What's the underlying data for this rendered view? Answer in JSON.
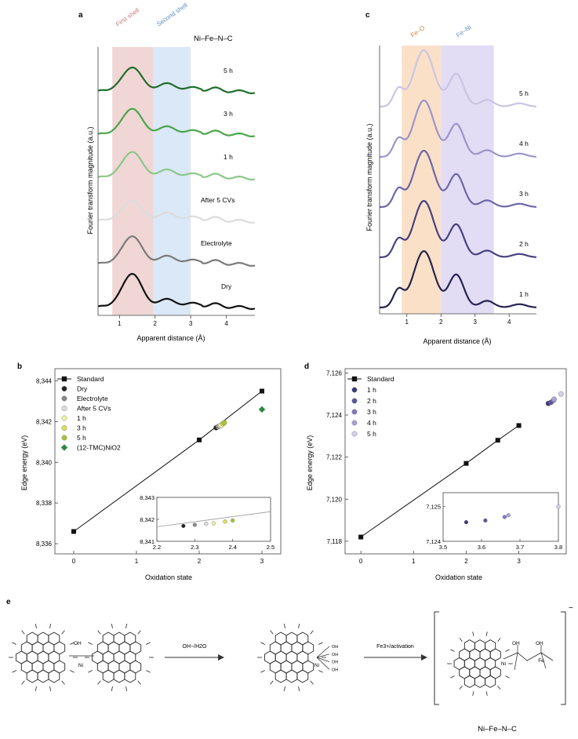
{
  "panels": {
    "a": {
      "label": "a",
      "title": "Ni–Fe–N–C",
      "bands": [
        "First shell",
        "Second shell"
      ],
      "ylabel": "Fourier transform magnitude (a.u.)",
      "xlabel": "Apparent distance (Å)",
      "xticks": [
        "1",
        "2",
        "3",
        "4"
      ],
      "curve_labels": [
        "5 h",
        "3 h",
        "1 h",
        "After 5 CVs",
        "Electrolyte",
        "Dry"
      ]
    },
    "c": {
      "label": "c",
      "bands": [
        "Fe–O",
        "Fe–Ni"
      ],
      "ylabel": "Fourier transform magnitude (a.u.)",
      "xlabel": "Apparent distance (Å)",
      "xticks": [
        "1",
        "2",
        "3",
        "4"
      ],
      "curve_labels": [
        "5 h",
        "4 h",
        "3 h",
        "2 h",
        "1 h"
      ]
    },
    "b": {
      "label": "b",
      "ylabel": "Edge energy (eV)",
      "xlabel": "Oxidation state",
      "xticks": [
        "0",
        "1",
        "2",
        "3"
      ],
      "yticks": [
        "8,336",
        "8,338",
        "8,340",
        "8,342",
        "8,344"
      ],
      "legend": [
        "Standard",
        "Dry",
        "Electrolyte",
        "After 5 CVs",
        "1 h",
        "3 h",
        "5 h",
        "(12-TMC)NiO2"
      ],
      "inset_xticks": [
        "2.2",
        "2.3",
        "2.4",
        "2.5"
      ],
      "inset_yticks": [
        "8,341",
        "8,342",
        "8,343"
      ]
    },
    "d": {
      "label": "d",
      "ylabel": "Edge energy (eV)",
      "xlabel": "Oxidation state",
      "xticks": [
        "0",
        "1",
        "2",
        "3"
      ],
      "yticks": [
        "7,118",
        "7,120",
        "7,122",
        "7,124",
        "7,126"
      ],
      "legend": [
        "Standard",
        "1 h",
        "2 h",
        "3 h",
        "4 h",
        "5 h"
      ],
      "inset_xticks": [
        "3.5",
        "3.6",
        "3.7",
        "3.8"
      ],
      "inset_yticks": [
        "7,124",
        "7,125"
      ]
    },
    "e": {
      "label": "e",
      "arrow1": "OH−/H2O",
      "arrow2": "Fe3+/activation",
      "product": "Ni–Fe–N–C",
      "ligands_left": "OH",
      "ligands_right": [
        "OH",
        "OH"
      ]
    }
  },
  "chart_data": [
    {
      "type": "line",
      "panel": "a",
      "title": "Ni–Fe–N–C",
      "xlabel": "Apparent distance (Å)",
      "ylabel": "Fourier transform magnitude (a.u.)",
      "xlim": [
        0.4,
        4.8
      ],
      "shaded_regions": [
        {
          "name": "First shell",
          "range": [
            0.8,
            1.95
          ]
        },
        {
          "name": "Second shell",
          "range": [
            1.95,
            3.0
          ]
        }
      ],
      "series": [
        {
          "name": "5 h",
          "color": "#1f6e2a",
          "offset": 5,
          "amp": 0.65
        },
        {
          "name": "3 h",
          "color": "#4aa64b",
          "offset": 4,
          "amp": 0.7
        },
        {
          "name": "1 h",
          "color": "#8bc88a",
          "offset": 3,
          "amp": 0.7
        },
        {
          "name": "After 5 CVs",
          "color": "#dcdcdc",
          "offset": 2,
          "amp": 0.55
        },
        {
          "name": "Electrolyte",
          "color": "#7a7a7a",
          "offset": 1,
          "amp": 0.75
        },
        {
          "name": "Dry",
          "color": "#111111",
          "offset": 0,
          "amp": 0.9
        }
      ]
    },
    {
      "type": "line",
      "panel": "c",
      "xlabel": "Apparent distance (Å)",
      "ylabel": "Fourier transform magnitude (a.u.)",
      "xlim": [
        0.2,
        4.8
      ],
      "shaded_regions": [
        {
          "name": "Fe–O",
          "range": [
            0.85,
            2.0
          ]
        },
        {
          "name": "Fe–Ni",
          "range": [
            2.0,
            3.55
          ]
        }
      ],
      "series": [
        {
          "name": "5 h",
          "color": "#c9c6e2",
          "offset": 4
        },
        {
          "name": "4 h",
          "color": "#9b96c8",
          "offset": 3
        },
        {
          "name": "3 h",
          "color": "#6d68a8",
          "offset": 2
        },
        {
          "name": "2 h",
          "color": "#47427f",
          "offset": 1
        },
        {
          "name": "1 h",
          "color": "#262450",
          "offset": 0
        }
      ]
    },
    {
      "type": "scatter",
      "panel": "b",
      "xlabel": "Oxidation state",
      "ylabel": "Edge energy (eV)",
      "xlim": [
        -0.3,
        3.3
      ],
      "ylim": [
        8335.5,
        8344.6
      ],
      "series": [
        {
          "name": "Standard",
          "marker": "square",
          "color": "#111111",
          "line": true,
          "x": [
            0,
            2,
            3
          ],
          "y": [
            8336.6,
            8341.1,
            8343.5
          ]
        },
        {
          "name": "Dry",
          "marker": "circle",
          "color": "#222222",
          "x": [
            2.27
          ],
          "y": [
            8341.7
          ]
        },
        {
          "name": "Electrolyte",
          "marker": "circle",
          "color": "#888888",
          "x": [
            2.3
          ],
          "y": [
            8341.75
          ]
        },
        {
          "name": "After 5 CVs",
          "marker": "circle",
          "color": "#dddddd",
          "x": [
            2.33
          ],
          "y": [
            8341.8
          ]
        },
        {
          "name": "1 h",
          "marker": "circle",
          "color": "#eef3a0",
          "x": [
            2.35
          ],
          "y": [
            8341.82
          ]
        },
        {
          "name": "3 h",
          "marker": "circle",
          "color": "#d7e255",
          "x": [
            2.38
          ],
          "y": [
            8341.9
          ]
        },
        {
          "name": "5 h",
          "marker": "circle",
          "color": "#a7c43a",
          "x": [
            2.4
          ],
          "y": [
            8341.95
          ]
        },
        {
          "name": "(12-TMC)NiO2",
          "marker": "diamond",
          "color": "#2e8b3e",
          "x": [
            3
          ],
          "y": [
            8342.6
          ]
        }
      ],
      "inset": {
        "xlim": [
          2.2,
          2.5
        ],
        "ylim": [
          8341,
          8343
        ]
      }
    },
    {
      "type": "scatter",
      "panel": "d",
      "xlabel": "Oxidation state",
      "ylabel": "Edge energy (eV)",
      "xlim": [
        -0.3,
        3.9
      ],
      "ylim": [
        7117.4,
        7126.2
      ],
      "series": [
        {
          "name": "Standard",
          "marker": "square",
          "color": "#111111",
          "line": true,
          "x": [
            0,
            2,
            2.6,
            3
          ],
          "y": [
            7118.2,
            7121.7,
            7122.8,
            7123.5
          ]
        },
        {
          "name": "1 h",
          "marker": "circle",
          "color": "#3b3a7a",
          "x": [
            3.56
          ],
          "y": [
            7124.55
          ]
        },
        {
          "name": "2 h",
          "marker": "circle",
          "color": "#5a55a0",
          "x": [
            3.61
          ],
          "y": [
            7124.6
          ]
        },
        {
          "name": "3 h",
          "marker": "circle",
          "color": "#7f79bf",
          "x": [
            3.66
          ],
          "y": [
            7124.7
          ]
        },
        {
          "name": "4 h",
          "marker": "circle",
          "color": "#a9a4d6",
          "x": [
            3.67
          ],
          "y": [
            7124.75
          ]
        },
        {
          "name": "5 h",
          "marker": "circle",
          "color": "#d4d1ec",
          "x": [
            3.8
          ],
          "y": [
            7125.0
          ]
        }
      ],
      "inset": {
        "xlim": [
          3.5,
          3.8
        ],
        "ylim": [
          7124,
          7125.4
        ]
      }
    }
  ]
}
